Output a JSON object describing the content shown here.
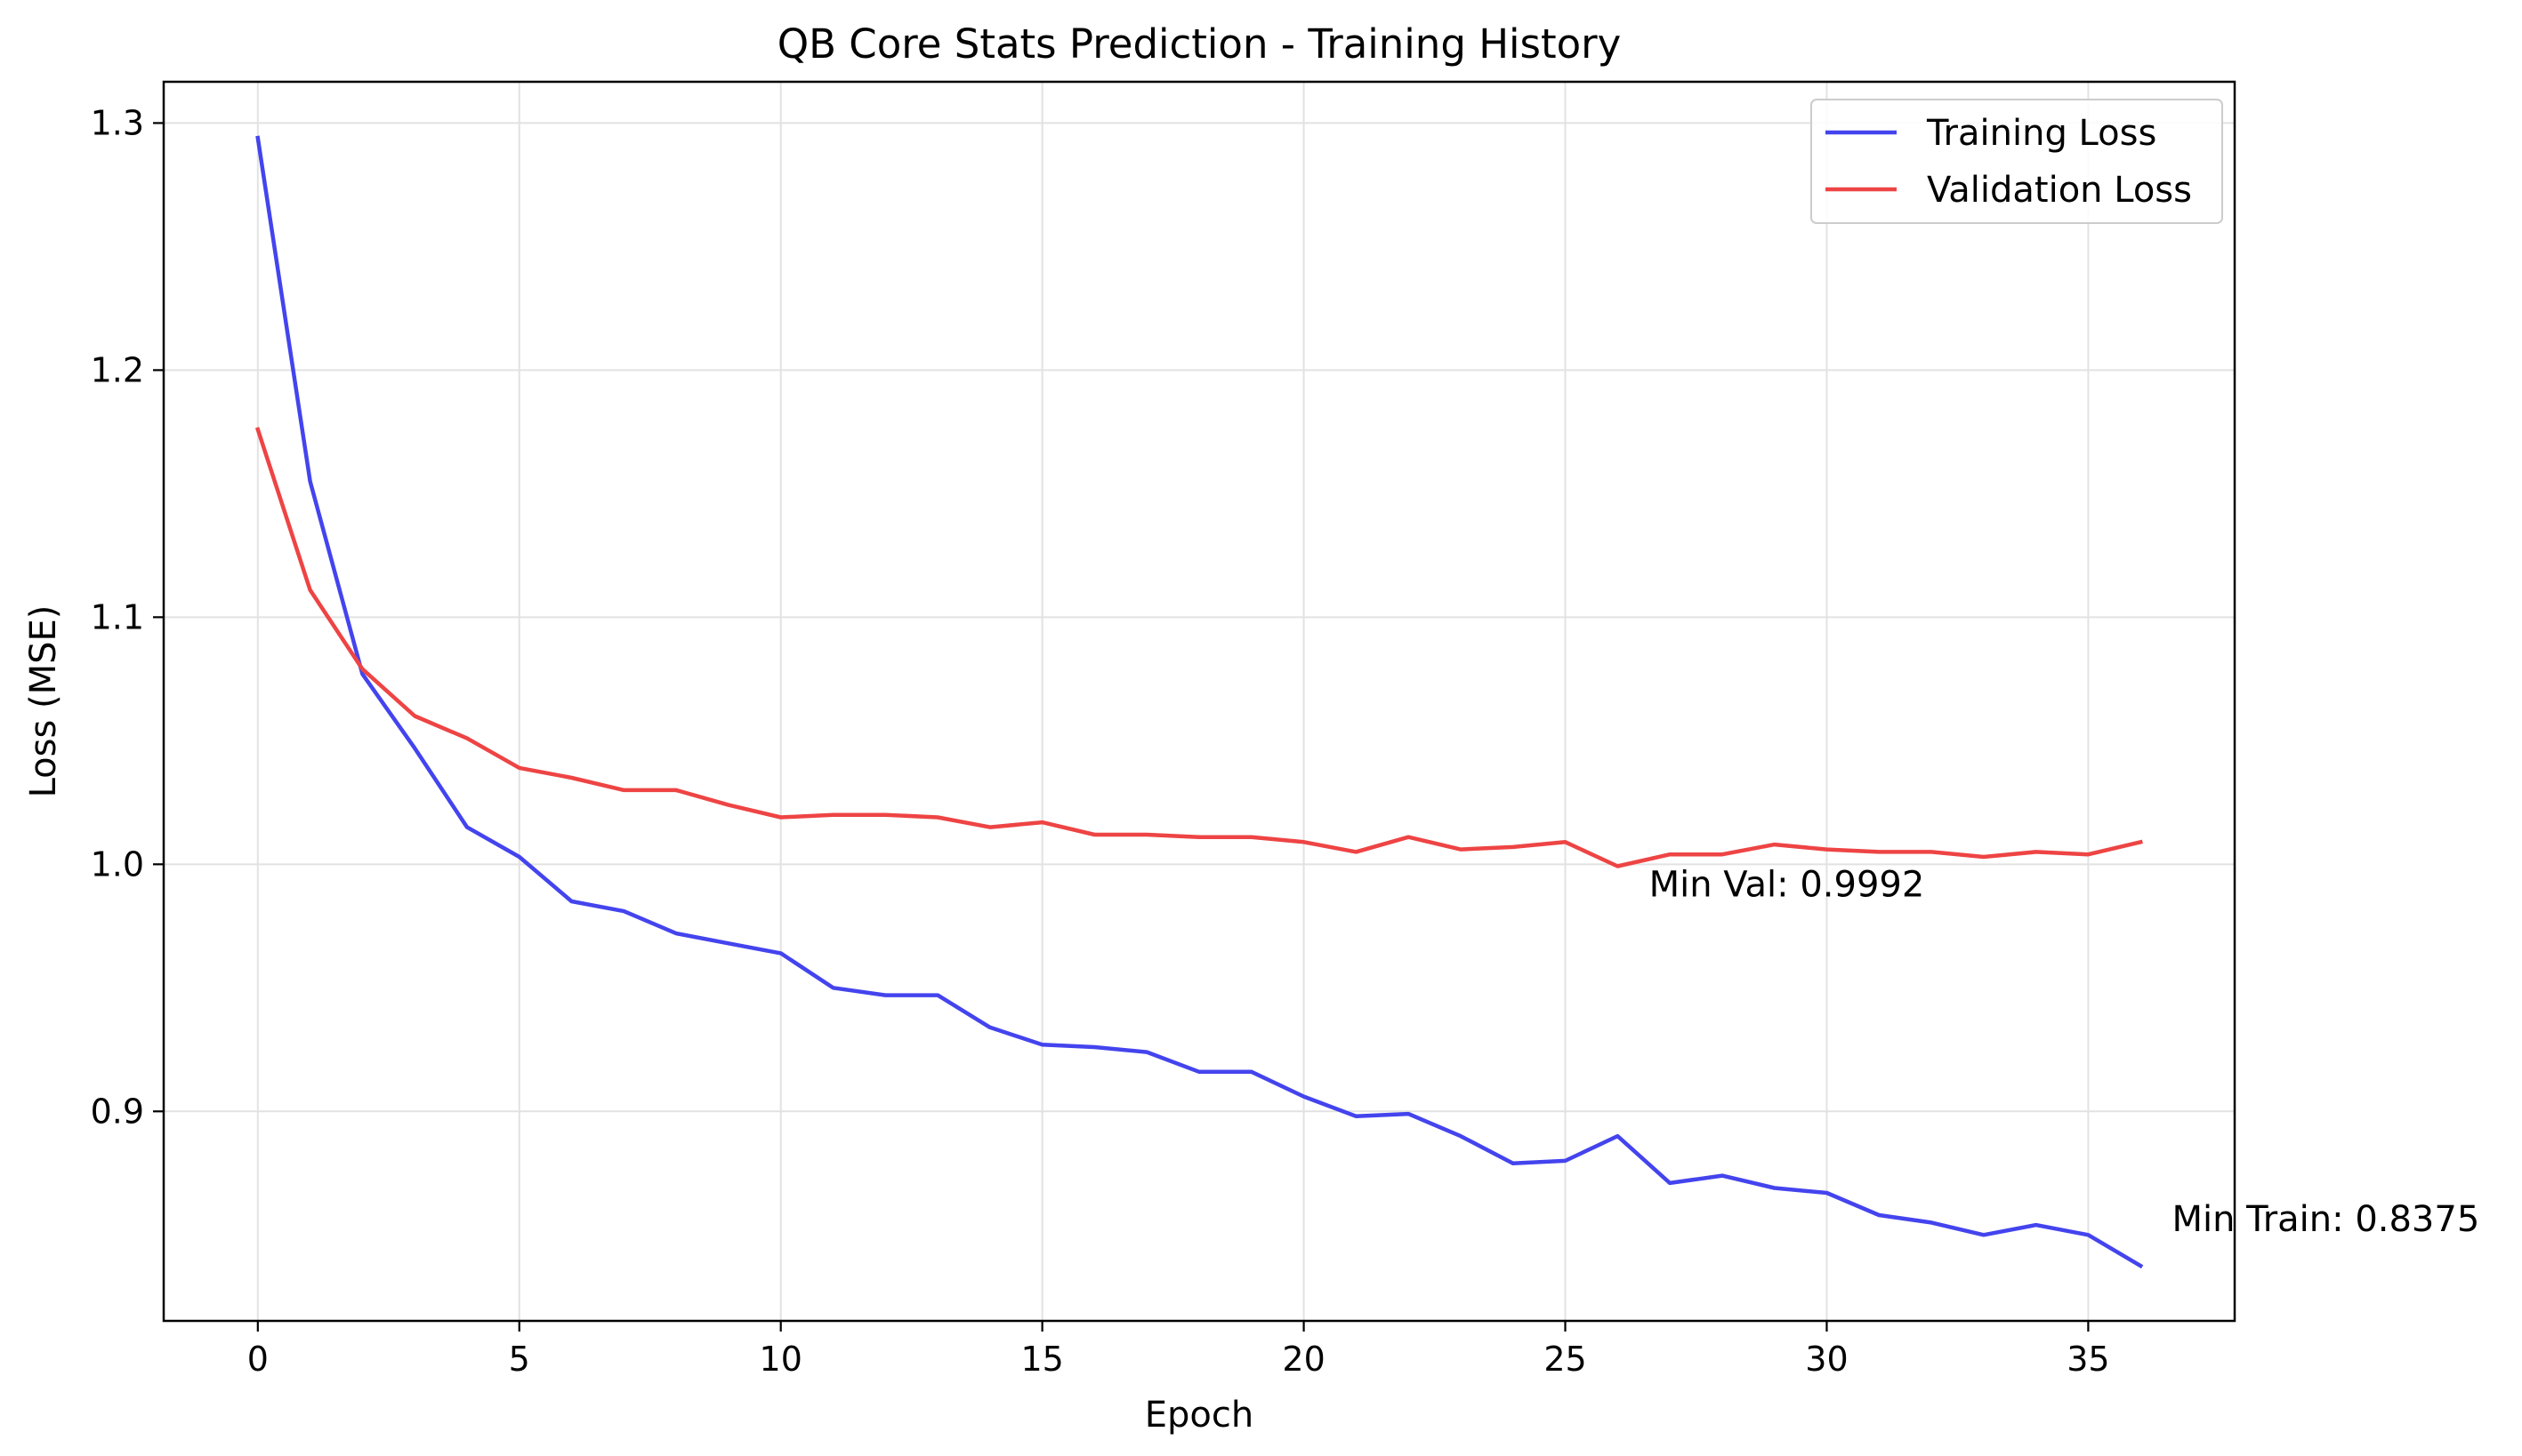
{
  "chart_data": {
    "type": "line",
    "title": "QB Core Stats Prediction - Training History",
    "xlabel": "Epoch",
    "ylabel": "Loss (MSE)",
    "xlim": [
      -1.8,
      37.8
    ],
    "ylim": [
      0.8152,
      1.3167
    ],
    "xticks": [
      0,
      5,
      10,
      15,
      20,
      25,
      30,
      35
    ],
    "yticks": [
      0.9,
      1.0,
      1.1,
      1.2,
      1.3
    ],
    "xtick_labels": [
      "0",
      "5",
      "10",
      "15",
      "20",
      "25",
      "30",
      "35"
    ],
    "ytick_labels": [
      "0.9",
      "1.0",
      "1.1",
      "1.2",
      "1.3"
    ],
    "grid": true,
    "legend_position": "top-right",
    "x": [
      0,
      1,
      2,
      3,
      4,
      5,
      6,
      7,
      8,
      9,
      10,
      11,
      12,
      13,
      14,
      15,
      16,
      17,
      18,
      19,
      20,
      21,
      22,
      23,
      24,
      25,
      26,
      27,
      28,
      29,
      30,
      31,
      32,
      33,
      34,
      35,
      36
    ],
    "series": [
      {
        "name": "Training Loss",
        "color": "#4444ee",
        "values": [
          1.294,
          1.155,
          1.077,
          1.047,
          1.015,
          1.003,
          0.985,
          0.981,
          0.972,
          0.968,
          0.964,
          0.95,
          0.947,
          0.947,
          0.934,
          0.927,
          0.926,
          0.924,
          0.916,
          0.916,
          0.906,
          0.898,
          0.899,
          0.89,
          0.879,
          0.88,
          0.89,
          0.871,
          0.874,
          0.869,
          0.867,
          0.858,
          0.855,
          0.85,
          0.854,
          0.85,
          0.8375
        ]
      },
      {
        "name": "Validation Loss",
        "color": "#ee4444",
        "values": [
          1.176,
          1.111,
          1.079,
          1.06,
          1.051,
          1.039,
          1.035,
          1.03,
          1.03,
          1.024,
          1.019,
          1.02,
          1.02,
          1.019,
          1.015,
          1.017,
          1.012,
          1.012,
          1.011,
          1.011,
          1.009,
          1.005,
          1.011,
          1.006,
          1.007,
          1.009,
          0.9992,
          1.004,
          1.004,
          1.008,
          1.006,
          1.005,
          1.005,
          1.003,
          1.005,
          1.004,
          1.009
        ]
      }
    ],
    "annotations": [
      {
        "text": "Min Val: 0.9992",
        "x": 26.6,
        "y": 0.987
      },
      {
        "text": "Min Train: 0.8375",
        "x": 36.6,
        "y": 0.8515
      }
    ]
  }
}
